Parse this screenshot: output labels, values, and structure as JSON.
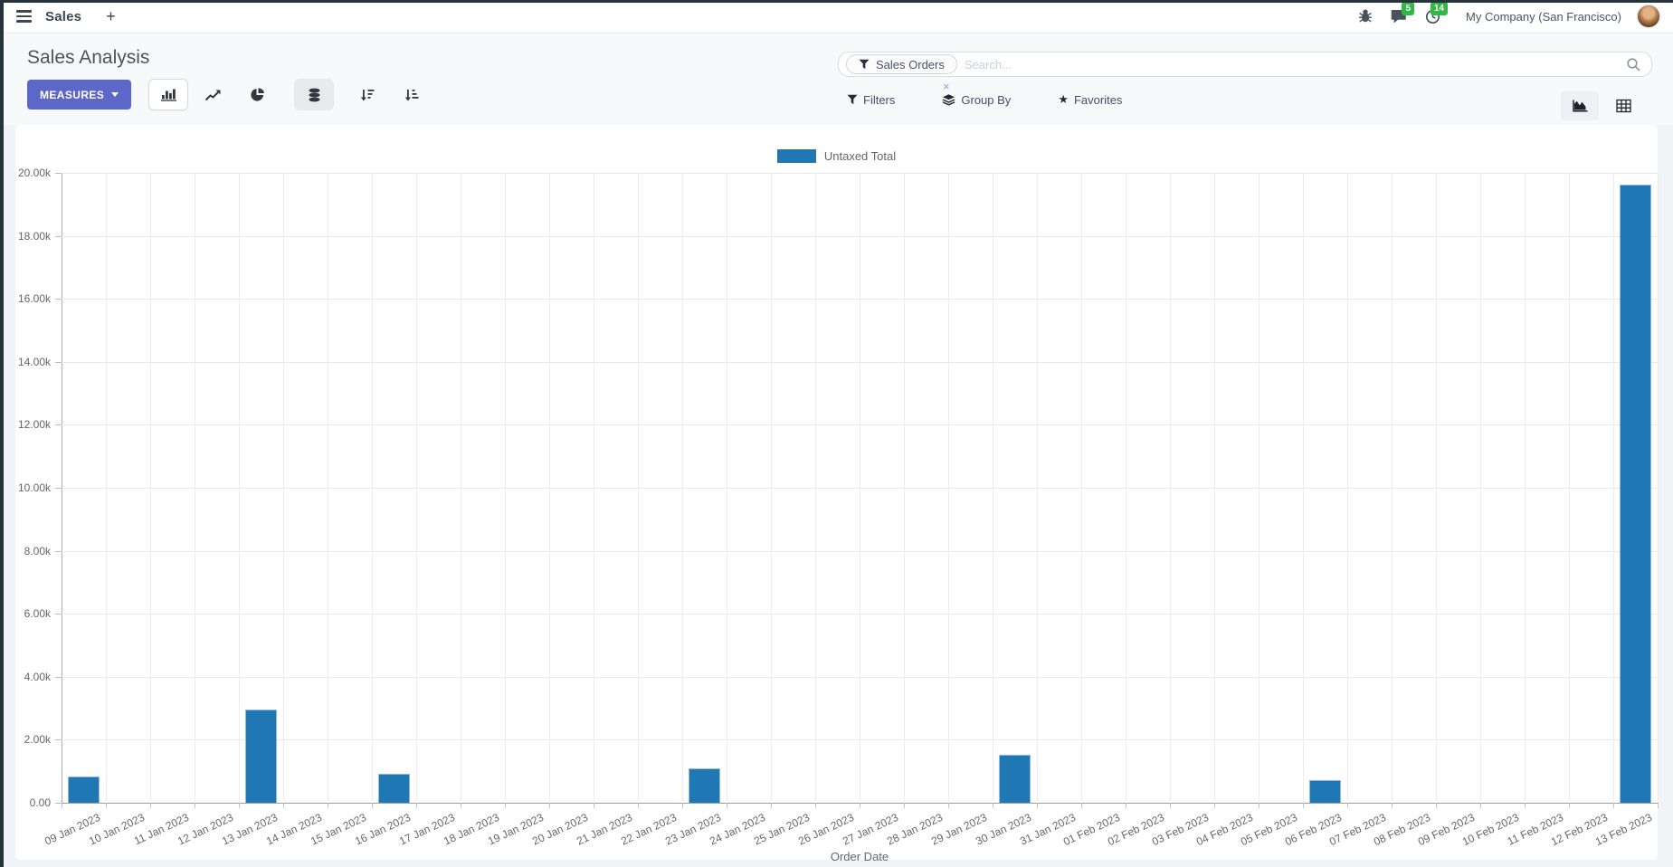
{
  "navbar": {
    "app_name": "Sales",
    "new_button": "+",
    "message_count": "5",
    "activity_count": "14",
    "company_name": "My Company (San Francisco)"
  },
  "control_panel": {
    "title": "Sales Analysis",
    "measures_button": "MEASURES",
    "search": {
      "facet_label": "Sales Orders",
      "facet_remove": "×",
      "placeholder": "Search..."
    },
    "filters_label": "Filters",
    "group_by_label": "Group By",
    "favorites_label": "Favorites"
  },
  "chart_data": {
    "type": "bar",
    "title": "",
    "legend_position": "top",
    "legend": [
      {
        "label": "Untaxed Total",
        "color": "#1f77b4"
      }
    ],
    "xlabel": "Order Date",
    "ylabel": "",
    "ylim": [
      0,
      20000
    ],
    "ytick_labels": [
      "0.00",
      "2.00k",
      "4.00k",
      "6.00k",
      "8.00k",
      "10.00k",
      "12.00k",
      "14.00k",
      "16.00k",
      "18.00k",
      "20.00k"
    ],
    "grid": true,
    "categories": [
      "09 Jan 2023",
      "10 Jan 2023",
      "11 Jan 2023",
      "12 Jan 2023",
      "13 Jan 2023",
      "14 Jan 2023",
      "15 Jan 2023",
      "16 Jan 2023",
      "17 Jan 2023",
      "18 Jan 2023",
      "19 Jan 2023",
      "20 Jan 2023",
      "21 Jan 2023",
      "22 Jan 2023",
      "23 Jan 2023",
      "24 Jan 2023",
      "25 Jan 2023",
      "26 Jan 2023",
      "27 Jan 2023",
      "28 Jan 2023",
      "29 Jan 2023",
      "30 Jan 2023",
      "31 Jan 2023",
      "01 Feb 2023",
      "02 Feb 2023",
      "03 Feb 2023",
      "04 Feb 2023",
      "05 Feb 2023",
      "06 Feb 2023",
      "07 Feb 2023",
      "08 Feb 2023",
      "09 Feb 2023",
      "10 Feb 2023",
      "11 Feb 2023",
      "12 Feb 2023",
      "13 Feb 2023"
    ],
    "series": [
      {
        "name": "Untaxed Total",
        "values": [
          840,
          0,
          0,
          0,
          2950,
          0,
          0,
          930,
          0,
          0,
          0,
          0,
          0,
          0,
          1100,
          0,
          0,
          0,
          0,
          0,
          0,
          1520,
          0,
          0,
          0,
          0,
          0,
          0,
          720,
          0,
          0,
          0,
          0,
          0,
          0,
          19620
        ]
      }
    ]
  }
}
